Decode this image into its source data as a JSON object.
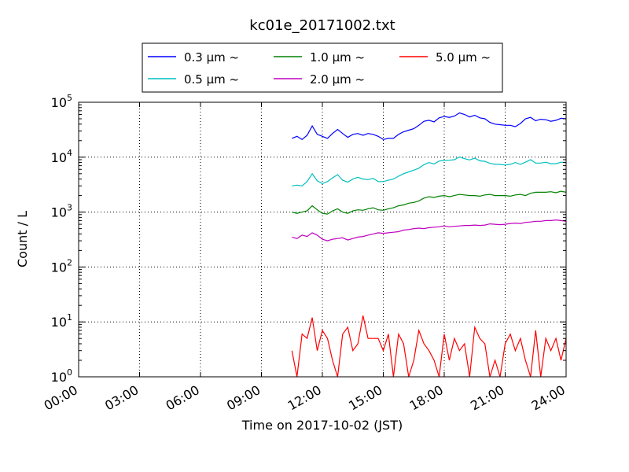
{
  "chart_data": {
    "type": "line",
    "title": "kc01e_20171002.txt",
    "xlabel": "Time on 2017-10-02 (JST)",
    "ylabel": "Count / L",
    "yscale": "log",
    "ylim": [
      1,
      100000
    ],
    "xlim": [
      "00:00",
      "24:00"
    ],
    "x_ticks": [
      "00:00",
      "03:00",
      "06:00",
      "09:00",
      "12:00",
      "15:00",
      "18:00",
      "21:00",
      "24:00"
    ],
    "y_ticks": [
      {
        "base": "10",
        "exp": "0",
        "value": 1
      },
      {
        "base": "10",
        "exp": "1",
        "value": 10
      },
      {
        "base": "10",
        "exp": "2",
        "value": 100
      },
      {
        "base": "10",
        "exp": "3",
        "value": 1000
      },
      {
        "base": "10",
        "exp": "4",
        "value": 10000
      },
      {
        "base": "10",
        "exp": "5",
        "value": 100000
      }
    ],
    "grid": true,
    "legend_position": "top-center, above plot",
    "x": [
      "10:30",
      "10:45",
      "11:00",
      "11:15",
      "11:30",
      "11:45",
      "12:00",
      "12:15",
      "12:30",
      "12:45",
      "13:00",
      "13:15",
      "13:30",
      "13:45",
      "14:00",
      "14:15",
      "14:30",
      "14:45",
      "15:00",
      "15:15",
      "15:30",
      "15:45",
      "16:00",
      "16:15",
      "16:30",
      "16:45",
      "17:00",
      "17:15",
      "17:30",
      "17:45",
      "18:00",
      "18:15",
      "18:30",
      "18:45",
      "19:00",
      "19:15",
      "19:30",
      "19:45",
      "20:00",
      "20:15",
      "20:30",
      "20:45",
      "21:00",
      "21:15",
      "21:30",
      "21:45",
      "22:00",
      "22:15",
      "22:30",
      "22:45",
      "23:00",
      "23:15",
      "23:30",
      "23:45",
      "24:00"
    ],
    "series": [
      {
        "name": "0.3 μm ~",
        "color": "#0000ff",
        "values": [
          22000,
          24000,
          21000,
          25000,
          37000,
          26000,
          24000,
          22000,
          27000,
          32000,
          27000,
          23000,
          26000,
          27000,
          25000,
          27000,
          26000,
          24000,
          21000,
          22000,
          22000,
          26000,
          29000,
          31000,
          33000,
          38000,
          45000,
          47000,
          44000,
          52000,
          55000,
          53000,
          56000,
          64000,
          60000,
          54000,
          58000,
          52000,
          50000,
          43000,
          40000,
          39000,
          38000,
          38000,
          36000,
          41000,
          50000,
          53000,
          46000,
          49000,
          48000,
          45000,
          47000,
          51000,
          50000
        ]
      },
      {
        "name": "0.5 μm ~",
        "color": "#00bfbf",
        "values": [
          3000,
          3100,
          3000,
          3600,
          5000,
          3700,
          3300,
          3600,
          4200,
          4800,
          3800,
          3500,
          4000,
          4300,
          4000,
          3900,
          4100,
          3600,
          3600,
          3800,
          4000,
          4500,
          5000,
          5400,
          5800,
          6300,
          7300,
          8000,
          7500,
          8500,
          8700,
          8800,
          9000,
          10100,
          9400,
          8900,
          9600,
          8600,
          8400,
          7700,
          7400,
          7400,
          7200,
          7400,
          8000,
          7400,
          8100,
          9000,
          7800,
          7800,
          8100,
          7600,
          7600,
          8100,
          8000
        ]
      },
      {
        "name": "1.0 μm ~",
        "color": "#008000",
        "values": [
          1000,
          950,
          1000,
          1050,
          1300,
          1100,
          950,
          920,
          1050,
          1150,
          1000,
          950,
          1050,
          1100,
          1080,
          1150,
          1200,
          1100,
          1080,
          1150,
          1200,
          1300,
          1350,
          1450,
          1500,
          1600,
          1800,
          1900,
          1850,
          1950,
          2000,
          1900,
          2000,
          2100,
          2050,
          2000,
          2000,
          1950,
          2050,
          2100,
          2000,
          2000,
          2000,
          1950,
          2050,
          2100,
          2000,
          2200,
          2300,
          2300,
          2300,
          2350,
          2250,
          2400,
          2300
        ]
      },
      {
        "name": "2.0 μm ~",
        "color": "#bf00bf",
        "values": [
          350,
          330,
          380,
          360,
          420,
          380,
          320,
          300,
          320,
          330,
          340,
          310,
          330,
          350,
          360,
          380,
          400,
          420,
          410,
          420,
          430,
          440,
          470,
          480,
          500,
          510,
          500,
          520,
          530,
          540,
          560,
          540,
          550,
          560,
          570,
          570,
          580,
          570,
          580,
          610,
          600,
          590,
          600,
          620,
          630,
          620,
          650,
          660,
          680,
          680,
          700,
          700,
          720,
          700,
          680
        ]
      },
      {
        "name": "5.0 μm ~",
        "color": "#ff0000",
        "values": [
          3,
          1,
          6,
          5,
          12,
          3,
          7,
          5,
          2,
          1,
          6,
          8,
          3,
          4,
          13,
          5,
          5,
          5,
          3,
          6,
          1,
          6,
          4,
          1,
          2,
          7,
          4,
          3,
          2,
          1,
          6,
          2,
          5,
          3,
          4,
          1,
          8,
          5,
          4,
          1,
          2,
          1,
          4,
          6,
          3,
          5,
          2,
          1,
          7,
          1,
          5,
          3,
          5,
          2,
          5
        ]
      }
    ]
  }
}
